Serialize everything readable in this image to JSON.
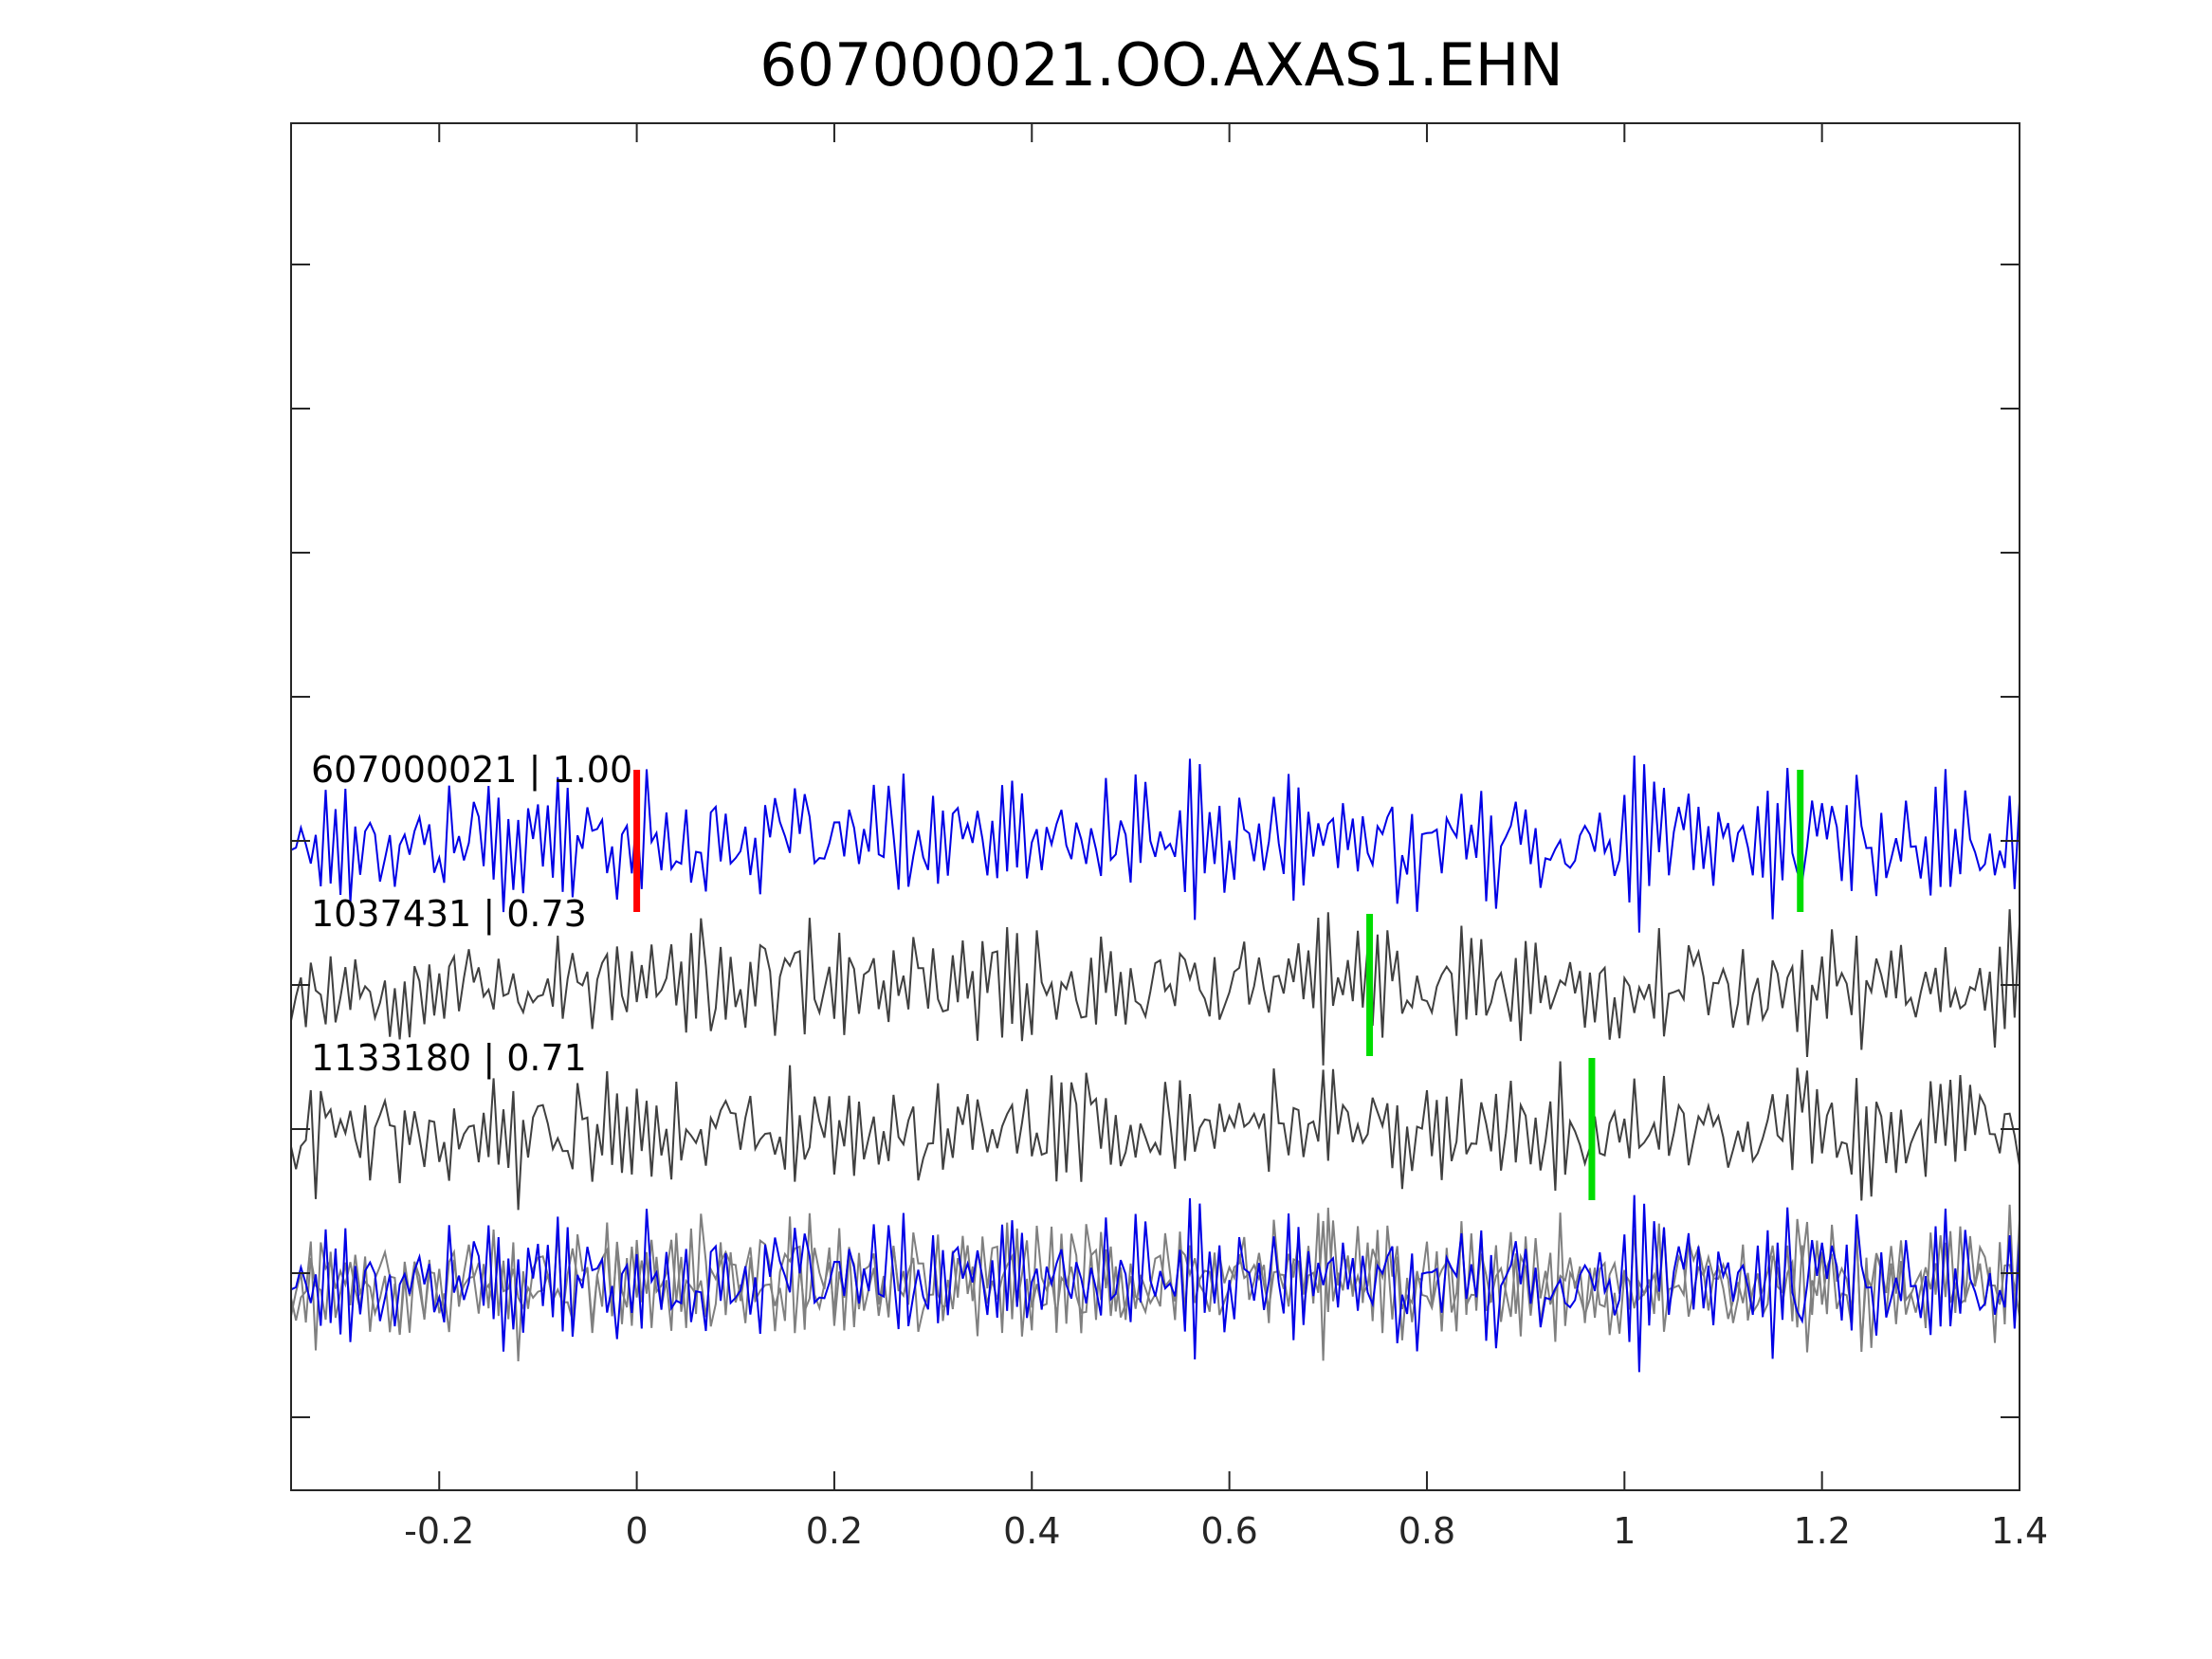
{
  "chart_data": {
    "type": "line",
    "title": "607000021.OO.AXAS1.EHN",
    "xlabel": "",
    "ylabel": "",
    "xlim": [
      -0.35,
      1.4
    ],
    "x_ticks": [
      -0.2,
      0,
      0.2,
      0.4,
      0.6,
      0.8,
      1,
      1.2,
      1.4
    ],
    "x_tick_labels": [
      "-0.2",
      "0",
      "0.2",
      "0.4",
      "0.6",
      "0.8",
      "1",
      "1.2",
      "1.4"
    ],
    "grid": false,
    "sample_interval": 0.005,
    "traces": [
      {
        "id": "607000021",
        "label": "607000021 | 1.00",
        "correlation": 1.0,
        "color": "#0000e6",
        "offset_level": 4,
        "seed": 17,
        "amplitude": 0.8,
        "picks": [
          {
            "time": 0.0,
            "color": "#ff0000"
          },
          {
            "time": 1.178,
            "color": "#00dd00"
          }
        ]
      },
      {
        "id": "1037431",
        "label": "1037431 | 0.73",
        "correlation": 0.73,
        "color": "#404040",
        "offset_level": 3,
        "seed": 53,
        "amplitude": 0.8,
        "picks": [
          {
            "time": 0.742,
            "color": "#00dd00"
          }
        ]
      },
      {
        "id": "1133180",
        "label": "1133180 | 0.71",
        "correlation": 0.71,
        "color": "#404040",
        "offset_level": 2,
        "seed": 91,
        "amplitude": 0.8,
        "picks": [
          {
            "time": 0.967,
            "color": "#00dd00"
          }
        ]
      }
    ],
    "overlay": {
      "offset_level": 0.95,
      "reference_color": "#0000e6",
      "other_color": "#808080"
    }
  }
}
